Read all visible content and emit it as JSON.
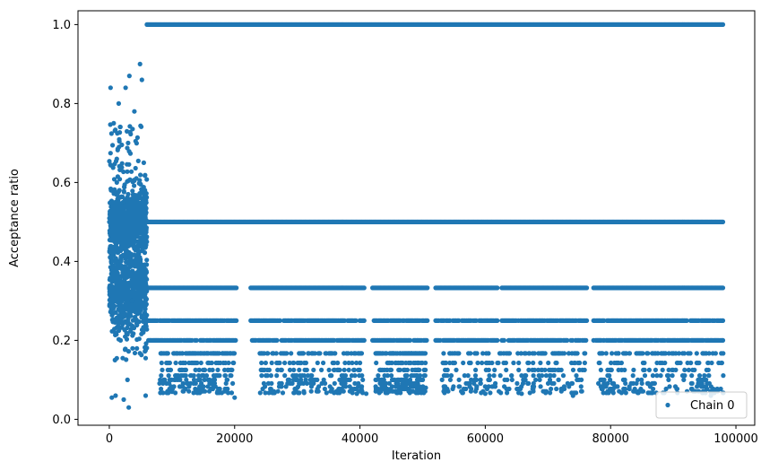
{
  "chart_data": {
    "type": "scatter",
    "xlabel": "Iteration",
    "ylabel": "Acceptance ratio",
    "xlim": [
      -5000,
      103000
    ],
    "ylim": [
      -0.015,
      1.035
    ],
    "xticks": [
      0,
      20000,
      40000,
      60000,
      80000,
      100000
    ],
    "yticks": [
      0.0,
      0.2,
      0.4,
      0.6,
      0.8,
      1.0
    ],
    "xtick_labels": [
      "0",
      "20000",
      "40000",
      "60000",
      "80000",
      "100000"
    ],
    "ytick_labels": [
      "0.0",
      "0.2",
      "0.4",
      "0.6",
      "0.8",
      "1.0"
    ],
    "grid": false,
    "legend": {
      "position": "bottom-right",
      "entries": [
        "Chain 0"
      ]
    },
    "series": [
      {
        "name": "Chain 0",
        "color": "#1f77b4",
        "marker": "circle",
        "iterations": [
          0,
          98000
        ],
        "bands": [
          {
            "y": 1.0,
            "x_range": [
              6000,
              98000
            ]
          },
          {
            "y": 0.5,
            "x_range": [
              0,
              98000
            ]
          },
          {
            "y": 0.333,
            "x_range": [
              6000,
              98000
            ]
          },
          {
            "y": 0.25,
            "x_range": [
              6000,
              98000
            ]
          },
          {
            "y": 0.2,
            "x_range": [
              6000,
              98000
            ]
          }
        ],
        "burn_in": {
          "x_range": [
            0,
            6000
          ],
          "y_range": [
            0.03,
            0.9
          ]
        },
        "sample_points": [
          [
            4900,
            0.9
          ],
          [
            3200,
            0.87
          ],
          [
            5200,
            0.86
          ],
          [
            200,
            0.84
          ],
          [
            2600,
            0.84
          ],
          [
            1500,
            0.8
          ],
          [
            4000,
            0.78
          ],
          [
            700,
            0.75
          ],
          [
            3000,
            0.7
          ],
          [
            5500,
            0.65
          ],
          [
            1200,
            0.6
          ],
          [
            2200,
            0.55
          ],
          [
            4500,
            0.45
          ],
          [
            300,
            0.4
          ],
          [
            3600,
            0.3
          ],
          [
            1800,
            0.2
          ],
          [
            900,
            0.15
          ],
          [
            2900,
            0.1
          ],
          [
            1000,
            0.06
          ],
          [
            2300,
            0.05
          ],
          [
            3100,
            0.03
          ],
          [
            5800,
            0.06
          ],
          [
            400,
            0.055
          ],
          [
            10000,
            0.07
          ],
          [
            16500,
            0.08
          ],
          [
            20000,
            0.055
          ],
          [
            30000,
            0.08
          ],
          [
            39500,
            0.065
          ],
          [
            41000,
            0.065
          ],
          [
            50500,
            0.08
          ],
          [
            60000,
            0.065
          ],
          [
            65800,
            0.065
          ],
          [
            74000,
            0.06
          ],
          [
            86000,
            0.09
          ],
          [
            96000,
            0.06
          ]
        ]
      }
    ]
  }
}
